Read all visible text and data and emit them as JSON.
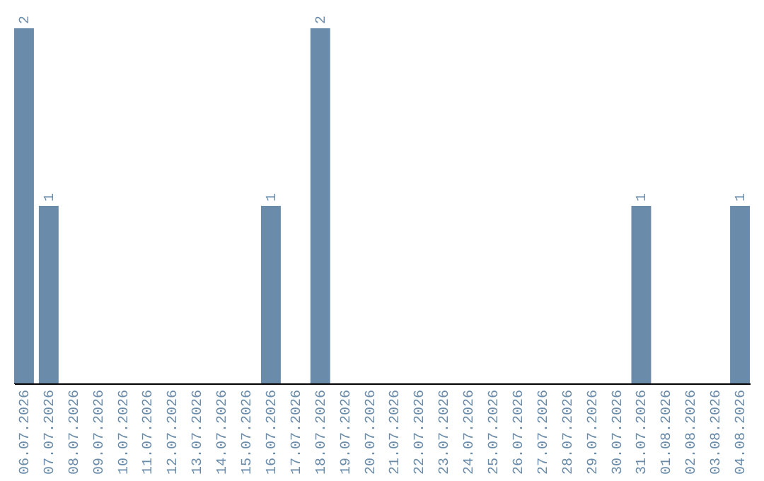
{
  "chart_data": {
    "type": "bar",
    "categories": [
      "06.07.2026",
      "07.07.2026",
      "08.07.2026",
      "09.07.2026",
      "10.07.2026",
      "11.07.2026",
      "12.07.2026",
      "13.07.2026",
      "14.07.2026",
      "15.07.2026",
      "16.07.2026",
      "17.07.2026",
      "18.07.2026",
      "19.07.2026",
      "20.07.2026",
      "21.07.2026",
      "22.07.2026",
      "23.07.2026",
      "24.07.2026",
      "25.07.2026",
      "26.07.2026",
      "27.07.2026",
      "28.07.2026",
      "29.07.2026",
      "30.07.2026",
      "31.07.2026",
      "01.08.2026",
      "02.08.2026",
      "03.08.2026",
      "04.08.2026"
    ],
    "values": [
      2,
      1,
      0,
      0,
      0,
      0,
      0,
      0,
      0,
      0,
      1,
      0,
      2,
      0,
      0,
      0,
      0,
      0,
      0,
      0,
      0,
      0,
      0,
      0,
      0,
      1,
      0,
      0,
      0,
      1
    ],
    "value_labels": [
      "2",
      "1",
      null,
      null,
      null,
      null,
      null,
      null,
      null,
      null,
      "1",
      null,
      "2",
      null,
      null,
      null,
      null,
      null,
      null,
      null,
      null,
      null,
      null,
      null,
      null,
      "1",
      null,
      null,
      null,
      "1"
    ],
    "color": "#6a8caa",
    "grid": false
  }
}
